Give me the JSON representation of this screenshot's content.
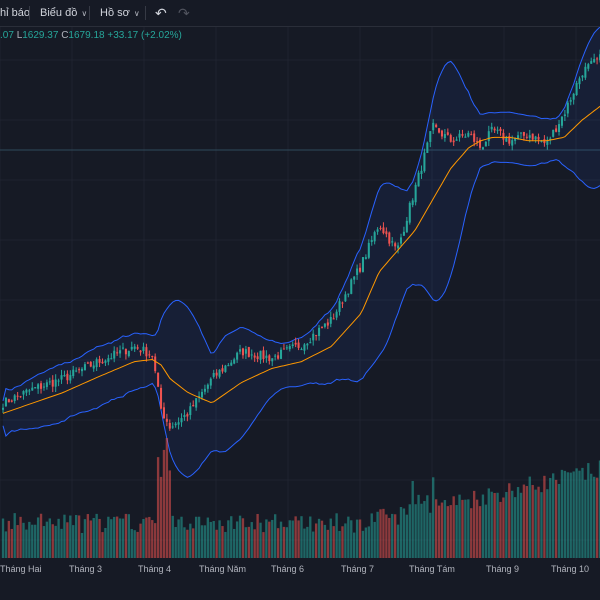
{
  "toolbar": {
    "alert_label": "hỉ báo",
    "chart_menu_label": "Biểu đồ",
    "profile_menu_label": "Hồ sơ"
  },
  "ohlc": {
    "open_tail": ".07",
    "low_label": "L",
    "low": "1629.37",
    "close_label": "C",
    "close": "1679.18",
    "change": "+33.17 (+2.02%)"
  },
  "colors": {
    "background": "#161a25",
    "up": "#26a69a",
    "down": "#ef5350",
    "bollinger_band": "#2962ff",
    "moving_average": "#ff9800"
  },
  "chart_data": {
    "type": "candlestick",
    "indicators": [
      "bollinger_bands",
      "moving_average",
      "volume"
    ],
    "x_tick_labels": [
      "Tháng Hai",
      "Tháng 3",
      "Tháng 4",
      "Tháng Năm",
      "Tháng 6",
      "Tháng 7",
      "Tháng Tám",
      "Tháng 9",
      "Tháng 10"
    ],
    "last": {
      "low": 1629.37,
      "close": 1679.18,
      "change": 33.17,
      "change_pct": 2.02
    },
    "price_series_approx": {
      "times": [
        0,
        0.05,
        0.1,
        0.16,
        0.22,
        0.25,
        0.265,
        0.28,
        0.31,
        0.35,
        0.4,
        0.45,
        0.5,
        0.55,
        0.6,
        0.63,
        0.66,
        0.69,
        0.72,
        0.75,
        0.78,
        0.8,
        0.82,
        0.85,
        0.88,
        0.91,
        0.94,
        0.97,
        1.0
      ],
      "close": [
        1180,
        1200,
        1215,
        1240,
        1262,
        1250,
        1170,
        1145,
        1165,
        1215,
        1255,
        1245,
        1265,
        1300,
        1380,
        1440,
        1400,
        1490,
        1580,
        1560,
        1570,
        1550,
        1575,
        1560,
        1570,
        1555,
        1600,
        1660,
        1679
      ],
      "ma20": [
        1165,
        1180,
        1195,
        1218,
        1240,
        1243,
        1235,
        1215,
        1195,
        1180,
        1210,
        1230,
        1240,
        1262,
        1310,
        1370,
        1400,
        1430,
        1475,
        1520,
        1550,
        1560,
        1565,
        1565,
        1560,
        1560,
        1565,
        1590,
        1610
      ]
    }
  }
}
